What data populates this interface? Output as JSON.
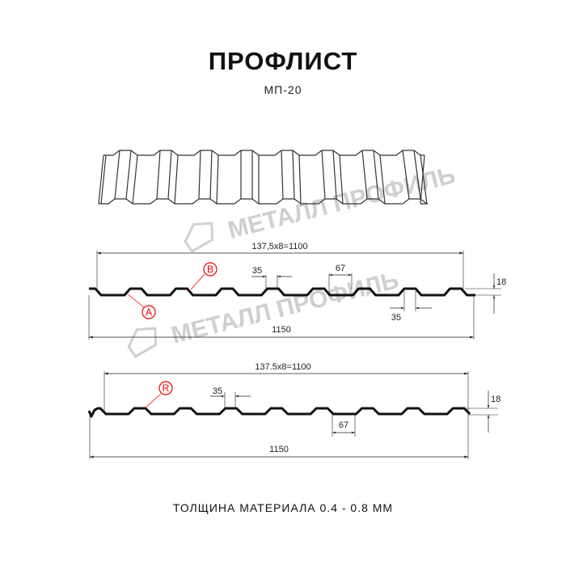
{
  "header": {
    "title": "ПРОФЛИСТ",
    "subtitle": "МП-20"
  },
  "watermark": {
    "text": "МЕТАЛЛ ПРОФИЛЬ"
  },
  "profile_a": {
    "pitch_label": "137,5x8=1100",
    "width_label": "1150",
    "top_label": "35",
    "bottom_top_label": "67",
    "bottom_label": "35",
    "height_label": "18",
    "marker_a": "A",
    "marker_b": "B"
  },
  "profile_r": {
    "pitch_label": "137.5x8=1100",
    "width_label": "1150",
    "top_label": "35",
    "bottom_label": "67",
    "height_label": "18",
    "marker_r": "R"
  },
  "footer": {
    "thickness": "ТОЛЩИНА МАТЕРИАЛА 0.4 - 0.8 ММ"
  },
  "colors": {
    "line": "#111111",
    "marker": "#e00000",
    "watermark": "#cfcfcf"
  }
}
